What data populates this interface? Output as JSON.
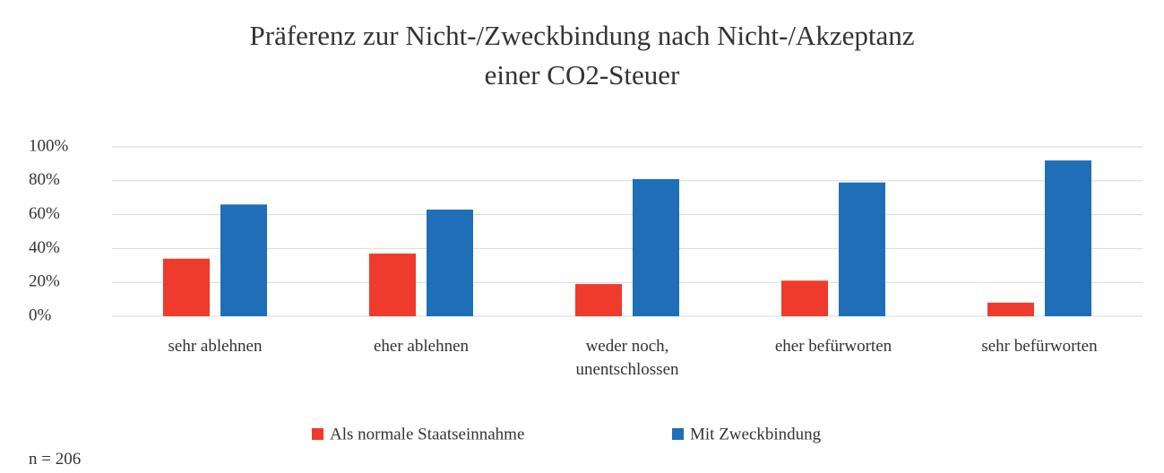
{
  "chart_data": {
    "type": "bar",
    "title": "Präferenz zur Nicht-/Zweckbindung nach Nicht-/Akzeptanz",
    "subtitle": "einer CO2-Steuer",
    "annotation": "n = 206",
    "categories": [
      "sehr ablehnen",
      "eher ablehnen",
      "weder noch, unentschlossen",
      "eher befürworten",
      "sehr befürworten"
    ],
    "series": [
      {
        "name": "Als normale Staatseinnahme",
        "color": "#ee3b2b",
        "values": [
          34,
          37,
          19,
          21,
          8
        ]
      },
      {
        "name": "Mit Zweckbindung",
        "color": "#1f6fb8",
        "values": [
          66,
          63,
          81,
          79,
          92
        ]
      }
    ],
    "ylim": [
      0,
      100
    ],
    "yticks": [
      {
        "value": 0,
        "label": "0%"
      },
      {
        "value": 20,
        "label": "20%"
      },
      {
        "value": 40,
        "label": "40%"
      },
      {
        "value": 60,
        "label": "60%"
      },
      {
        "value": 80,
        "label": "80%"
      },
      {
        "value": 100,
        "label": "100%"
      }
    ],
    "grid": true,
    "legend": "bottom"
  }
}
